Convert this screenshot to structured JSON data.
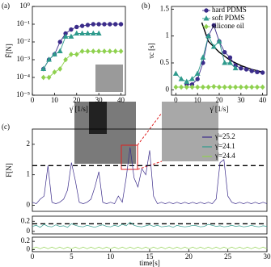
{
  "chart_data": [
    {
      "type": "line",
      "label": "(a)",
      "ylabel": "F̄[N]",
      "xlabel": "γ̇ [1/s]",
      "ylog": true,
      "xlim": [
        0,
        42
      ],
      "xticks": [
        0,
        10,
        20,
        30,
        40
      ],
      "ylim": [
        1e-05,
        1
      ],
      "yticks": [
        {
          "value": 1e-05,
          "label": "10⁻⁵"
        },
        {
          "value": 0.0001,
          "label": "10⁻⁴"
        },
        {
          "value": 0.001,
          "label": "10⁻³"
        },
        {
          "value": 0.01,
          "label": "10⁻²"
        },
        {
          "value": 0.1,
          "label": "10⁻¹"
        },
        {
          "value": 1,
          "label": "10⁰"
        }
      ],
      "series": [
        {
          "name": "hard PDMS",
          "color": "#3b2c8a",
          "marker": "circle",
          "x": [
            5,
            7.5,
            10,
            12.5,
            15,
            17.5,
            20,
            22.5,
            25,
            27.5,
            30,
            32.5,
            35,
            37.5,
            40
          ],
          "values": [
            0.0003,
            0.001,
            0.002,
            0.01,
            0.03,
            0.05,
            0.07,
            0.08,
            0.09,
            0.1,
            0.1,
            0.1,
            0.1,
            0.1,
            0.1
          ]
        },
        {
          "name": "soft PDMS",
          "color": "#2e9a8c",
          "marker": "triangle",
          "x": [
            5,
            7.5,
            10,
            12.5,
            15,
            17.5,
            20,
            22.5,
            25,
            27.5,
            30
          ],
          "values": [
            0.0003,
            0.001,
            0.002,
            0.003,
            0.02,
            0.02,
            0.03,
            0.03,
            0.03,
            0.03,
            0.03
          ]
        },
        {
          "name": "silicone oil",
          "color": "#8fd14f",
          "marker": "diamond",
          "x": [
            5,
            7.5,
            10,
            12.5,
            15,
            17.5,
            20,
            22.5,
            25,
            27.5,
            30,
            32.5,
            35,
            37.5,
            40
          ],
          "values": [
            0.0001,
            0.0001,
            0.0002,
            0.0003,
            0.001,
            0.002,
            0.002,
            0.003,
            0.003,
            0.003,
            0.003,
            0.003,
            0.003,
            0.003,
            0.003
          ]
        }
      ]
    },
    {
      "type": "line",
      "label": "(b)",
      "ylabel": "τc [s]",
      "xlabel": "γ̇ [1/s]",
      "legend": "upper right",
      "xlim": [
        -2,
        42
      ],
      "xticks": [
        0,
        10,
        20,
        30,
        40
      ],
      "ylim": [
        -0.1,
        1.55
      ],
      "yticks": [
        0,
        0.5,
        1,
        1.5
      ],
      "series": [
        {
          "name": "hard PDMS",
          "color": "#3b2c8a",
          "marker": "circle",
          "x": [
            5,
            7.5,
            10,
            12.5,
            15,
            17.5,
            20,
            22.5,
            25,
            27.5,
            30,
            32.5,
            35,
            37.5,
            40
          ],
          "values": [
            0.1,
            0.1,
            0.2,
            0.5,
            1.0,
            1.2,
            0.9,
            0.7,
            0.6,
            0.45,
            0.4,
            0.38,
            0.35,
            0.33,
            0.32
          ]
        },
        {
          "name": "soft PDMS",
          "color": "#2e9a8c",
          "marker": "triangle",
          "x": [
            0,
            2.5,
            5,
            7.5,
            10,
            12.5,
            15,
            17.5,
            20,
            22.5,
            25,
            27.5
          ],
          "values": [
            0.3,
            0.2,
            0.15,
            0.2,
            0.3,
            0.6,
            1.0,
            0.8,
            0.9,
            0.5,
            0.5,
            0.4
          ]
        },
        {
          "name": "silicone oil",
          "color": "#8fd14f",
          "marker": "diamond",
          "x": [
            0,
            2.5,
            5,
            7.5,
            10,
            12.5,
            15,
            17.5,
            20,
            22.5,
            25,
            27.5,
            30,
            32.5,
            35,
            37.5,
            40
          ],
          "values": [
            0.05,
            0.05,
            0.05,
            0.05,
            0.05,
            0.05,
            0.05,
            0.06,
            0.05,
            0.05,
            0.05,
            0.05,
            0.05,
            0.05,
            0.05,
            0.05,
            0.05
          ]
        }
      ],
      "curve": {
        "color": "#000000",
        "x": [
          12,
          15,
          20,
          25,
          30,
          35,
          40
        ],
        "values": [
          1.25,
          0.9,
          0.7,
          0.55,
          0.45,
          0.38,
          0.33
        ]
      }
    },
    {
      "type": "line",
      "label": "(c)",
      "ylabel": "F[N]",
      "legend": "upper right",
      "xlim": [
        0,
        30
      ],
      "ylim": [
        -0.2,
        2.5
      ],
      "yticks": [
        0,
        1,
        2
      ],
      "threshold": 1.3,
      "series": [
        {
          "name": "γ̇=25.2",
          "color": "#3b2c8a",
          "x": [
            0,
            0.5,
            1,
            1.5,
            2,
            2.5,
            3,
            3.5,
            4,
            4.5,
            5,
            5.5,
            6,
            6.5,
            7,
            7.5,
            8,
            8.5,
            9,
            9.5,
            10,
            10.5,
            11,
            11.5,
            12,
            12.5,
            13,
            13.5,
            14,
            14.5,
            15,
            15.5,
            16,
            16.5,
            17,
            17.5,
            18,
            18.5,
            19,
            19.5,
            20,
            20.5,
            21,
            21.5,
            22,
            22.5,
            23,
            23.5,
            24,
            24.5,
            25,
            25.5,
            26,
            26.5,
            27,
            27.5,
            28,
            28.5,
            29,
            29.5,
            30
          ],
          "values": [
            0.1,
            0.05,
            0.2,
            0.3,
            1.3,
            0.1,
            0.05,
            0.1,
            0.2,
            0.5,
            1.4,
            0.8,
            0.1,
            0.05,
            0.1,
            0.2,
            0.6,
            1.1,
            0.1,
            0.05,
            0.1,
            0.05,
            0.3,
            0.1,
            0.9,
            1.9,
            0.9,
            0.6,
            1.2,
            1.0,
            1.8,
            0.3,
            0.05,
            0.1,
            0.05,
            0.1,
            0.05,
            0.1,
            0.05,
            0.1,
            0.05,
            0.1,
            0.05,
            0.1,
            0.05,
            0.1,
            0.05,
            0.2,
            1.4,
            1.5,
            0.3,
            0.1,
            0.05,
            0.1,
            0.05,
            0.1,
            0.05,
            0.1,
            0.05,
            0.1,
            0.05
          ]
        }
      ]
    },
    {
      "type": "line",
      "xlim": [
        0,
        30
      ],
      "ylim": [
        -0.05,
        0.3
      ],
      "yticks": [
        0,
        0.2
      ],
      "threshold": 0.15,
      "series": [
        {
          "name": "γ̇=24.1",
          "color": "#2e9a8c",
          "x": [
            0,
            0.5,
            1,
            1.5,
            2,
            2.5,
            3,
            3.5,
            4,
            4.5,
            5,
            5.5,
            6,
            6.5,
            7,
            7.5,
            8,
            8.5,
            9,
            9.5,
            10,
            10.5,
            11,
            11.5,
            12,
            12.5,
            13,
            13.5,
            14,
            14.5,
            15,
            15.5,
            16,
            16.5,
            17,
            17.5,
            18,
            18.5,
            19,
            19.5,
            20,
            20.5,
            21,
            21.5,
            22,
            22.5,
            23,
            23.5,
            24,
            24.5,
            25,
            25.5,
            26,
            26.5,
            27,
            27.5,
            28,
            28.5,
            29,
            29.5,
            30
          ],
          "values": [
            0.1,
            0.12,
            0.08,
            0.14,
            0.1,
            0.09,
            0.13,
            0.1,
            0.11,
            0.08,
            0.15,
            0.12,
            0.1,
            0.09,
            0.12,
            0.1,
            0.08,
            0.11,
            0.13,
            0.1,
            0.09,
            0.12,
            0.1,
            0.14,
            0.11,
            0.18,
            0.12,
            0.1,
            0.09,
            0.11,
            0.13,
            0.1,
            0.12,
            0.09,
            0.1,
            0.11,
            0.08,
            0.12,
            0.1,
            0.09,
            0.1,
            0.12,
            0.11,
            0.09,
            0.1,
            0.14,
            0.12,
            0.1,
            0.11,
            0.09,
            0.1,
            0.12,
            0.1,
            0.11,
            0.09,
            0.1,
            0.12,
            0.1,
            0.09,
            0.11,
            0.1
          ]
        }
      ]
    },
    {
      "type": "line",
      "xlabel": "time[s]",
      "xlim": [
        0,
        30
      ],
      "xticks": [
        0,
        5,
        10,
        15,
        20,
        25,
        30
      ],
      "ylim": [
        -0.05,
        0.3
      ],
      "yticks": [
        0,
        0.2
      ],
      "series": [
        {
          "name": "γ̇=24.4",
          "color": "#8fd14f",
          "x": [
            0,
            0.5,
            1,
            1.5,
            2,
            2.5,
            3,
            3.5,
            4,
            4.5,
            5,
            5.5,
            6,
            6.5,
            7,
            7.5,
            8,
            8.5,
            9,
            9.5,
            10,
            10.5,
            11,
            11.5,
            12,
            12.5,
            13,
            13.5,
            14,
            14.5,
            15,
            15.5,
            16,
            16.5,
            17,
            17.5,
            18,
            18.5,
            19,
            19.5,
            20,
            20.5,
            21,
            21.5,
            22,
            22.5,
            23,
            23.5,
            24,
            24.5,
            25,
            25.5,
            26,
            26.5,
            27,
            27.5,
            28,
            28.5,
            29,
            29.5,
            30
          ],
          "values": [
            0.02,
            0.06,
            0.02,
            0.06,
            0.02,
            0.06,
            0.02,
            0.06,
            0.02,
            0.06,
            0.02,
            0.06,
            0.02,
            0.06,
            0.02,
            0.06,
            0.02,
            0.06,
            0.02,
            0.06,
            0.02,
            0.06,
            0.02,
            0.06,
            0.02,
            0.06,
            0.02,
            0.06,
            0.02,
            0.06,
            0.02,
            0.06,
            0.02,
            0.06,
            0.02,
            0.06,
            0.02,
            0.06,
            0.02,
            0.06,
            0.02,
            0.06,
            0.02,
            0.06,
            0.02,
            0.06,
            0.02,
            0.06,
            0.02,
            0.06,
            0.02,
            0.06,
            0.02,
            0.06,
            0.02,
            0.06,
            0.02,
            0.06,
            0.02,
            0.06,
            0.02
          ]
        }
      ]
    }
  ]
}
